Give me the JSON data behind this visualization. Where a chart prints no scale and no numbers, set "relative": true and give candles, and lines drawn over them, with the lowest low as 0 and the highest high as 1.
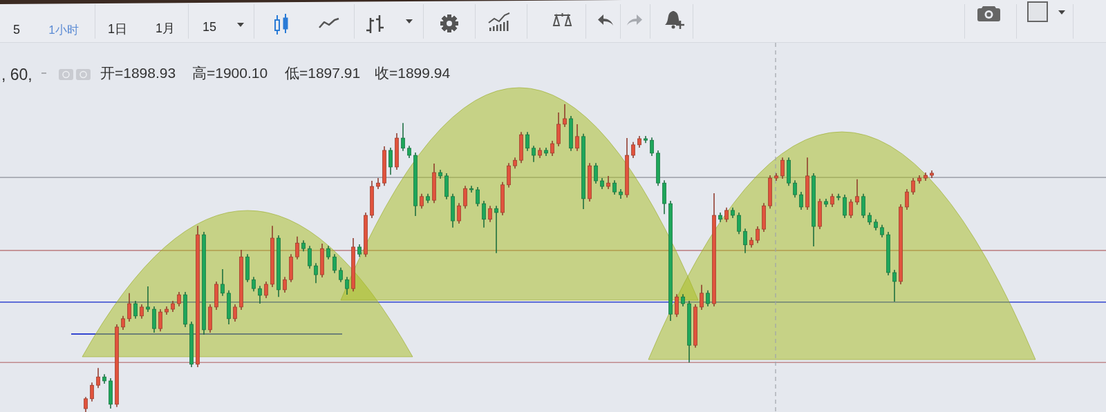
{
  "chart_data": {
    "type": "candlestick",
    "relative": true,
    "categories": [
      null,
      null,
      null,
      null,
      null,
      null,
      null,
      null,
      null,
      null,
      null,
      null,
      null,
      null,
      null,
      null,
      null,
      null,
      null,
      null,
      null,
      null,
      null,
      null,
      null,
      null,
      null,
      null,
      null,
      null,
      null,
      null,
      null,
      null,
      null,
      null,
      null,
      null,
      null,
      null,
      null,
      null,
      null,
      null,
      null,
      null,
      null,
      null,
      null,
      null,
      null,
      null,
      null,
      null,
      null,
      null,
      null,
      null,
      null,
      null,
      null,
      null,
      null,
      null,
      null,
      null,
      null,
      null,
      null,
      null,
      null,
      null,
      null,
      null,
      null,
      null,
      null,
      null,
      null,
      null,
      null,
      null,
      null,
      null,
      null,
      null,
      null,
      null,
      null,
      null,
      null,
      null,
      null,
      null,
      null,
      null,
      null,
      null,
      null,
      null,
      null,
      null,
      null,
      null,
      null,
      null,
      null,
      null,
      null,
      null,
      null,
      null,
      null,
      null,
      null,
      null,
      null,
      null,
      null,
      null,
      null,
      null,
      null,
      null,
      null,
      null,
      null,
      null,
      null,
      null,
      null,
      null,
      null,
      null,
      null,
      null,
      null
    ],
    "ohlc": [
      [
        0.011,
        0.049,
        0,
        0.043
      ],
      [
        0.043,
        0.096,
        0.034,
        0.087
      ],
      [
        0.087,
        0.143,
        0.078,
        0.114
      ],
      [
        0.114,
        0.123,
        0.092,
        0.101
      ],
      [
        0.101,
        0.11,
        0.011,
        0.025
      ],
      [
        0.025,
        0.285,
        0.016,
        0.276
      ],
      [
        0.276,
        0.312,
        0.267,
        0.303
      ],
      [
        0.303,
        0.386,
        0.294,
        0.352
      ],
      [
        0.352,
        0.361,
        0.303,
        0.312
      ],
      [
        0.312,
        0.35,
        0.303,
        0.341
      ],
      [
        0.341,
        0.408,
        0.325,
        0.334
      ],
      [
        0.334,
        0.343,
        0.258,
        0.271
      ],
      [
        0.271,
        0.334,
        0.262,
        0.325
      ],
      [
        0.325,
        0.343,
        0.316,
        0.334
      ],
      [
        0.334,
        0.361,
        0.325,
        0.352
      ],
      [
        0.352,
        0.39,
        0.343,
        0.381
      ],
      [
        0.381,
        0.39,
        0.276,
        0.285
      ],
      [
        0.285,
        0.294,
        0.146,
        0.155
      ],
      [
        0.155,
        0.605,
        0.146,
        0.576
      ],
      [
        0.576,
        0.585,
        0.251,
        0.267
      ],
      [
        0.267,
        0.35,
        0.258,
        0.341
      ],
      [
        0.341,
        0.424,
        0.332,
        0.415
      ],
      [
        0.415,
        0.464,
        0.377,
        0.386
      ],
      [
        0.386,
        0.395,
        0.285,
        0.303
      ],
      [
        0.303,
        0.35,
        0.294,
        0.341
      ],
      [
        0.341,
        0.527,
        0.332,
        0.504
      ],
      [
        0.504,
        0.513,
        0.422,
        0.43
      ],
      [
        0.43,
        0.439,
        0.392,
        0.401
      ],
      [
        0.401,
        0.41,
        0.352,
        0.379
      ],
      [
        0.379,
        0.424,
        0.37,
        0.415
      ],
      [
        0.415,
        0.605,
        0.406,
        0.565
      ],
      [
        0.565,
        0.574,
        0.374,
        0.397
      ],
      [
        0.397,
        0.439,
        0.388,
        0.43
      ],
      [
        0.43,
        0.513,
        0.422,
        0.504
      ],
      [
        0.504,
        0.57,
        0.496,
        0.549
      ],
      [
        0.549,
        0.558,
        0.522,
        0.531
      ],
      [
        0.531,
        0.54,
        0.466,
        0.475
      ],
      [
        0.475,
        0.484,
        0.419,
        0.446
      ],
      [
        0.446,
        0.547,
        0.437,
        0.531
      ],
      [
        0.531,
        0.54,
        0.496,
        0.504
      ],
      [
        0.504,
        0.513,
        0.451,
        0.46
      ],
      [
        0.46,
        0.469,
        0.422,
        0.43
      ],
      [
        0.43,
        0.439,
        0.381,
        0.401
      ],
      [
        0.401,
        0.565,
        0.392,
        0.536
      ],
      [
        0.536,
        0.545,
        0.504,
        0.513
      ],
      [
        0.513,
        0.648,
        0.504,
        0.639
      ],
      [
        0.639,
        0.751,
        0.63,
        0.733
      ],
      [
        0.733,
        0.76,
        0.724,
        0.744
      ],
      [
        0.744,
        0.863,
        0.735,
        0.85
      ],
      [
        0.85,
        0.859,
        0.771,
        0.796
      ],
      [
        0.796,
        0.906,
        0.787,
        0.89
      ],
      [
        0.89,
        0.939,
        0.848,
        0.857
      ],
      [
        0.857,
        0.865,
        0.825,
        0.834
      ],
      [
        0.834,
        0.843,
        0.637,
        0.67
      ],
      [
        0.67,
        0.709,
        0.661,
        0.7
      ],
      [
        0.7,
        0.709,
        0.679,
        0.688
      ],
      [
        0.688,
        0.807,
        0.679,
        0.778
      ],
      [
        0.778,
        0.787,
        0.758,
        0.767
      ],
      [
        0.767,
        0.776,
        0.691,
        0.7
      ],
      [
        0.7,
        0.709,
        0.599,
        0.621
      ],
      [
        0.621,
        0.679,
        0.612,
        0.67
      ],
      [
        0.67,
        0.735,
        0.661,
        0.726
      ],
      [
        0.726,
        0.735,
        0.713,
        0.722
      ],
      [
        0.722,
        0.731,
        0.668,
        0.677
      ],
      [
        0.677,
        0.686,
        0.599,
        0.626
      ],
      [
        0.626,
        0.67,
        0.617,
        0.661
      ],
      [
        0.661,
        0.67,
        0.516,
        0.648
      ],
      [
        0.648,
        0.747,
        0.639,
        0.738
      ],
      [
        0.738,
        0.809,
        0.729,
        0.8
      ],
      [
        0.8,
        0.827,
        0.791,
        0.818
      ],
      [
        0.818,
        0.91,
        0.809,
        0.901
      ],
      [
        0.901,
        0.91,
        0.848,
        0.857
      ],
      [
        0.857,
        0.865,
        0.812,
        0.834
      ],
      [
        0.834,
        0.859,
        0.825,
        0.85
      ],
      [
        0.85,
        0.859,
        0.832,
        0.841
      ],
      [
        0.841,
        0.881,
        0.832,
        0.872
      ],
      [
        0.872,
        0.973,
        0.863,
        0.935
      ],
      [
        0.935,
        1,
        0.926,
        0.953
      ],
      [
        0.953,
        0.962,
        0.848,
        0.857
      ],
      [
        0.857,
        0.935,
        0.848,
        0.895
      ],
      [
        0.895,
        0.904,
        0.659,
        0.693
      ],
      [
        0.693,
        0.809,
        0.684,
        0.8
      ],
      [
        0.8,
        0.809,
        0.742,
        0.751
      ],
      [
        0.751,
        0.76,
        0.724,
        0.733
      ],
      [
        0.733,
        0.767,
        0.724,
        0.744
      ],
      [
        0.744,
        0.753,
        0.706,
        0.715
      ],
      [
        0.715,
        0.724,
        0.693,
        0.706
      ],
      [
        0.706,
        0.89,
        0.697,
        0.834
      ],
      [
        0.834,
        0.877,
        0.825,
        0.868
      ],
      [
        0.868,
        0.897,
        0.859,
        0.888
      ],
      [
        0.888,
        0.897,
        0.874,
        0.883
      ],
      [
        0.883,
        0.892,
        0.832,
        0.841
      ],
      [
        0.841,
        0.85,
        0.735,
        0.744
      ],
      [
        0.744,
        0.753,
        0.643,
        0.677
      ],
      [
        0.677,
        0.686,
        0.296,
        0.318
      ],
      [
        0.318,
        0.383,
        0.309,
        0.374
      ],
      [
        0.374,
        0.383,
        0.343,
        0.352
      ],
      [
        0.352,
        0.361,
        0.161,
        0.217
      ],
      [
        0.217,
        0.35,
        0.209,
        0.341
      ],
      [
        0.341,
        0.413,
        0.332,
        0.386
      ],
      [
        0.386,
        0.395,
        0.343,
        0.352
      ],
      [
        0.352,
        0.711,
        0.343,
        0.639
      ],
      [
        0.639,
        0.648,
        0.617,
        0.626
      ],
      [
        0.626,
        0.664,
        0.617,
        0.655
      ],
      [
        0.655,
        0.664,
        0.63,
        0.639
      ],
      [
        0.639,
        0.648,
        0.578,
        0.587
      ],
      [
        0.587,
        0.596,
        0.516,
        0.543
      ],
      [
        0.543,
        0.567,
        0.534,
        0.558
      ],
      [
        0.558,
        0.603,
        0.549,
        0.594
      ],
      [
        0.594,
        0.679,
        0.585,
        0.67
      ],
      [
        0.67,
        0.769,
        0.661,
        0.76
      ],
      [
        0.76,
        0.776,
        0.751,
        0.767
      ],
      [
        0.767,
        0.827,
        0.758,
        0.818
      ],
      [
        0.818,
        0.827,
        0.735,
        0.744
      ],
      [
        0.744,
        0.753,
        0.697,
        0.706
      ],
      [
        0.706,
        0.715,
        0.657,
        0.666
      ],
      [
        0.666,
        0.827,
        0.657,
        0.767
      ],
      [
        0.767,
        0.776,
        0.538,
        0.603
      ],
      [
        0.603,
        0.693,
        0.594,
        0.684
      ],
      [
        0.684,
        0.693,
        0.666,
        0.675
      ],
      [
        0.675,
        0.709,
        0.666,
        0.7
      ],
      [
        0.7,
        0.709,
        0.688,
        0.697
      ],
      [
        0.697,
        0.706,
        0.63,
        0.639
      ],
      [
        0.639,
        0.691,
        0.63,
        0.682
      ],
      [
        0.682,
        0.756,
        0.673,
        0.7
      ],
      [
        0.7,
        0.709,
        0.63,
        0.639
      ],
      [
        0.639,
        0.648,
        0.608,
        0.617
      ],
      [
        0.617,
        0.626,
        0.59,
        0.599
      ],
      [
        0.599,
        0.608,
        0.567,
        0.576
      ],
      [
        0.576,
        0.585,
        0.444,
        0.453
      ],
      [
        0.453,
        0.462,
        0.359,
        0.424
      ],
      [
        0.424,
        0.675,
        0.415,
        0.666
      ],
      [
        0.666,
        0.724,
        0.657,
        0.715
      ],
      [
        0.715,
        0.76,
        0.706,
        0.751
      ],
      [
        0.751,
        0.769,
        0.742,
        0.76
      ],
      [
        0.76,
        0.778,
        0.751,
        0.769
      ],
      [
        0.769,
        0.785,
        0.76,
        0.776
      ]
    ],
    "colors": [
      "#e0533d",
      "#e0533d",
      "#e0533d",
      "#1ea65a",
      "#1ea65a",
      "#e0533d",
      "#e0533d",
      "#e0533d",
      "#1ea65a",
      "#e0533d",
      "#1ea65a",
      "#1ea65a",
      "#e0533d",
      "#e0533d",
      "#e0533d",
      "#e0533d",
      "#1ea65a",
      "#1ea65a",
      "#e0533d",
      "#1ea65a",
      "#e0533d",
      "#e0533d",
      "#1ea65a",
      "#1ea65a",
      "#e0533d",
      "#e0533d",
      "#1ea65a",
      "#1ea65a",
      "#1ea65a",
      "#e0533d",
      "#e0533d",
      "#1ea65a",
      "#e0533d",
      "#e0533d",
      "#e0533d",
      "#1ea65a",
      "#1ea65a",
      "#1ea65a",
      "#e0533d",
      "#1ea65a",
      "#1ea65a",
      "#1ea65a",
      "#1ea65a",
      "#e0533d",
      "#1ea65a",
      "#e0533d",
      "#e0533d",
      "#e0533d",
      "#e0533d",
      "#1ea65a",
      "#e0533d",
      "#1ea65a",
      "#1ea65a",
      "#1ea65a",
      "#e0533d",
      "#1ea65a",
      "#e0533d",
      "#1ea65a",
      "#1ea65a",
      "#1ea65a",
      "#e0533d",
      "#e0533d",
      "#1ea65a",
      "#1ea65a",
      "#1ea65a",
      "#e0533d",
      "#1ea65a",
      "#e0533d",
      "#e0533d",
      "#e0533d",
      "#e0533d",
      "#1ea65a",
      "#1ea65a",
      "#e0533d",
      "#1ea65a",
      "#e0533d",
      "#e0533d",
      "#e0533d",
      "#1ea65a",
      "#e0533d",
      "#1ea65a",
      "#e0533d",
      "#1ea65a",
      "#1ea65a",
      "#e0533d",
      "#1ea65a",
      "#1ea65a",
      "#e0533d",
      "#e0533d",
      "#e0533d",
      "#1ea65a",
      "#1ea65a",
      "#1ea65a",
      "#1ea65a",
      "#1ea65a",
      "#e0533d",
      "#1ea65a",
      "#1ea65a",
      "#e0533d",
      "#e0533d",
      "#1ea65a",
      "#e0533d",
      "#1ea65a",
      "#e0533d",
      "#1ea65a",
      "#1ea65a",
      "#1ea65a",
      "#e0533d",
      "#e0533d",
      "#e0533d",
      "#e0533d",
      "#e0533d",
      "#e0533d",
      "#1ea65a",
      "#1ea65a",
      "#1ea65a",
      "#e0533d",
      "#1ea65a",
      "#e0533d",
      "#1ea65a",
      "#e0533d",
      "#1ea65a",
      "#1ea65a",
      "#e0533d",
      "#e0533d",
      "#1ea65a",
      "#1ea65a",
      "#1ea65a",
      "#1ea65a",
      "#1ea65a",
      "#1ea65a",
      "#e0533d",
      "#e0533d",
      "#e0533d",
      "#e0533d",
      "#e0533d",
      "#e0533d"
    ],
    "ref_lines": [
      {
        "axis": "y",
        "value": 0.762,
        "color": "#a6a9b1"
      },
      {
        "axis": "y",
        "value": 0.525,
        "color": "#c08a8c"
      },
      {
        "axis": "y",
        "value": 0.357,
        "color": "#3346d0"
      },
      {
        "axis": "y",
        "value": 0.161,
        "color": "#c08a8c"
      }
    ],
    "annotations": [
      "5",
      "1小时",
      "1日",
      "1月",
      "15",
      ", 60,",
      "开=1898.93",
      "高=1900.10",
      "低=1897.91",
      "收=1899.94"
    ]
  }
}
